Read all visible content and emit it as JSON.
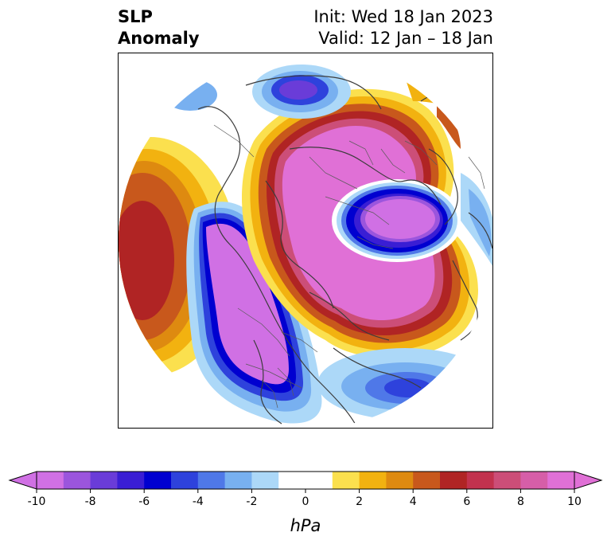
{
  "header": {
    "title_line1": "SLP",
    "title_line2": "Anomaly",
    "init": "Init: Wed 18 Jan 2023",
    "valid": "Valid: 12 Jan – 18 Jan"
  },
  "colorbar": {
    "unit": "hPa",
    "range": [
      -10,
      10
    ],
    "extend": "both",
    "bounds": [
      -10,
      -9,
      -8,
      -7,
      -6,
      -5,
      -4,
      -3,
      -2,
      -1,
      1,
      2,
      3,
      4,
      5,
      6,
      7,
      8,
      9,
      10
    ],
    "tick_labels": [
      "-10",
      "-8",
      "-6",
      "-4",
      "-2",
      "0",
      "2",
      "4",
      "6",
      "8",
      "10"
    ],
    "colors": [
      "#d070e4",
      "#9b55dd",
      "#6a3cd8",
      "#3a1ed4",
      "#0000d0",
      "#2e42dc",
      "#4f78e8",
      "#78b0f0",
      "#acd8f8",
      "#ffffff",
      "#fbe04e",
      "#f2b210",
      "#de8a10",
      "#c8581c",
      "#b02424",
      "#c2324e",
      "#cc4e78",
      "#d65ea8",
      "#e070d6"
    ]
  },
  "map": {
    "projection": "north-polar-stereographic",
    "features": [
      "coastlines",
      "country-borders",
      "state-borders"
    ],
    "anomaly_centers": [
      {
        "region": "north-pacific",
        "sign": "positive"
      },
      {
        "region": "western-north-america",
        "sign": "negative"
      },
      {
        "region": "arctic",
        "sign": "positive"
      },
      {
        "region": "eurasia",
        "sign": "positive"
      },
      {
        "region": "siberia",
        "sign": "negative"
      },
      {
        "region": "north-atlantic",
        "sign": "positive"
      },
      {
        "region": "subtropical-atlantic",
        "sign": "negative"
      }
    ]
  }
}
